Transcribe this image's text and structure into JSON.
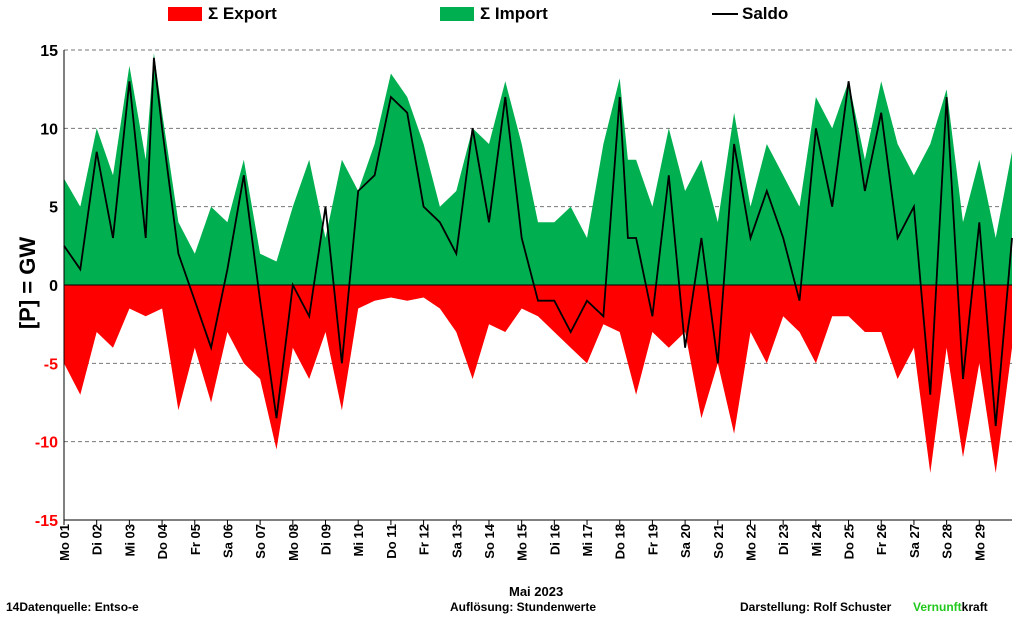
{
  "legend": {
    "export": "Σ Export",
    "import": "Σ Import",
    "saldo": "Saldo"
  },
  "colors": {
    "export": "#ff0000",
    "import": "#00b050",
    "saldo": "#000000"
  },
  "yaxis": {
    "label": "[P]  = GW",
    "ticks": [
      15,
      10,
      5,
      0,
      -5,
      -10,
      -15
    ]
  },
  "xaxis": {
    "title": "Mai 2023",
    "labels": [
      "Mo 01",
      "Di 02",
      "Mi 03",
      "Do 04",
      "Fr 05",
      "Sa 06",
      "So 07",
      "Mo 08",
      "Di 09",
      "Mi 10",
      "Do 11",
      "Fr 12",
      "Sa 13",
      "So 14",
      "Mo 15",
      "Di 16",
      "Mi 17",
      "Do 18",
      "Fr 19",
      "Sa 20",
      "So 21",
      "Mo 22",
      "Di 23",
      "Mi 24",
      "Do 25",
      "Fr 26",
      "Sa 27",
      "So 28",
      "Mo 29"
    ]
  },
  "footer": {
    "source": "14Datenquelle: Entso-e",
    "resolution": "Auflösung: Stundenwerte",
    "author": "Darstellung:  Rolf Schuster",
    "brand_part1": "Vernunft",
    "brand_part2": "kraft"
  },
  "chart_data": {
    "type": "area",
    "ylim": [
      -15,
      15
    ],
    "x_unit": "day of May 2023",
    "xlim": [
      1,
      30
    ],
    "grid": true,
    "series": [
      {
        "name": "Σ Import",
        "x": [
          1,
          1.5,
          2,
          2.5,
          3,
          3.5,
          3.75,
          4,
          4.5,
          5,
          5.5,
          6,
          6.5,
          7,
          7.5,
          8,
          8.5,
          9,
          9.5,
          10,
          10.5,
          11,
          11.5,
          12,
          12.5,
          13,
          13.5,
          14,
          14.5,
          15,
          15.5,
          16,
          16.5,
          17,
          17.5,
          18,
          18.25,
          18.5,
          19,
          19.5,
          20,
          20.5,
          21,
          21.5,
          22,
          22.5,
          23,
          23.5,
          24,
          24.5,
          25,
          25.5,
          26,
          26.5,
          27,
          27.5,
          28,
          28.5,
          29,
          29.5,
          30
        ],
        "values": [
          6.8,
          5,
          10,
          7,
          14,
          8,
          14.8,
          11,
          4,
          2,
          5,
          4,
          8,
          2,
          1.5,
          5,
          8,
          3,
          8,
          6,
          9,
          13.5,
          12,
          9,
          5,
          6,
          10,
          9,
          13,
          9,
          4,
          4,
          5,
          3,
          9,
          13.2,
          8,
          8,
          5,
          10,
          6,
          8,
          4,
          11,
          5,
          9,
          7,
          5,
          12,
          10,
          13,
          8,
          13,
          9,
          7,
          9,
          12.5,
          4,
          8,
          3,
          8.5
        ]
      },
      {
        "name": "Σ Export",
        "x": [
          1,
          1.5,
          2,
          2.5,
          3,
          3.5,
          4,
          4.5,
          5,
          5.5,
          6,
          6.5,
          7,
          7.5,
          8,
          8.5,
          9,
          9.5,
          10,
          10.5,
          11,
          11.5,
          12,
          12.5,
          13,
          13.5,
          14,
          14.5,
          15,
          15.5,
          16,
          16.5,
          17,
          17.5,
          18,
          18.5,
          19,
          19.5,
          20,
          20.5,
          21,
          21.5,
          22,
          22.5,
          23,
          23.5,
          24,
          24.5,
          25,
          25.5,
          26,
          26.5,
          27,
          27.5,
          28,
          28.5,
          29,
          29.5,
          30
        ],
        "values": [
          -5,
          -7,
          -3,
          -4,
          -1.5,
          -2,
          -1.5,
          -8,
          -4,
          -7.5,
          -3,
          -5,
          -6,
          -10.5,
          -4,
          -6,
          -3,
          -8,
          -1.5,
          -1,
          -0.8,
          -1,
          -0.8,
          -1.5,
          -3,
          -6,
          -2.5,
          -3,
          -1.5,
          -2,
          -3,
          -4,
          -5,
          -2.5,
          -3,
          -7,
          -3,
          -4,
          -3,
          -8.5,
          -5,
          -9.5,
          -3,
          -5,
          -2,
          -3,
          -5,
          -2,
          -2,
          -3,
          -3,
          -6,
          -4,
          -12,
          -4,
          -11,
          -5,
          -12,
          -4
        ]
      },
      {
        "name": "Saldo",
        "x": [
          1,
          1.5,
          2,
          2.5,
          3,
          3.5,
          3.75,
          4,
          4.5,
          5,
          5.5,
          6,
          6.5,
          7,
          7.5,
          8,
          8.5,
          9,
          9.5,
          10,
          10.5,
          11,
          11.5,
          12,
          12.5,
          13,
          13.5,
          14,
          14.5,
          15,
          15.5,
          16,
          16.5,
          17,
          17.5,
          18,
          18.25,
          18.5,
          19,
          19.5,
          20,
          20.5,
          21,
          21.5,
          22,
          22.5,
          23,
          23.5,
          24,
          24.5,
          25,
          25.5,
          26,
          26.5,
          27,
          27.5,
          28,
          28.5,
          29,
          29.5,
          30
        ],
        "values": [
          2.5,
          1,
          8.5,
          3,
          13,
          3,
          14.5,
          10,
          2,
          -1,
          -4,
          1,
          7,
          -1,
          -8.5,
          0,
          -2,
          5,
          -5,
          6,
          7,
          12,
          11,
          5,
          4,
          2,
          10,
          4,
          12,
          3,
          -1,
          -1,
          -3,
          -1,
          -2,
          12,
          3,
          3,
          -2,
          7,
          -4,
          3,
          -5,
          9,
          3,
          6,
          3,
          -1,
          10,
          5,
          13,
          6,
          11,
          3,
          5,
          -7,
          12,
          -6,
          4,
          -9,
          3
        ]
      }
    ]
  }
}
